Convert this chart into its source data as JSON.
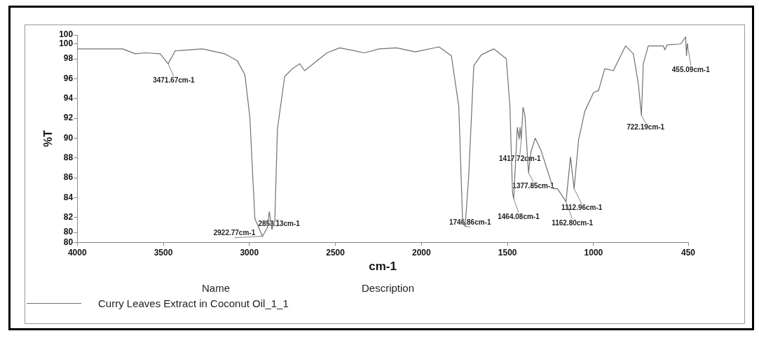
{
  "chart_data": {
    "type": "line",
    "xlabel": "cm-1",
    "ylabel": "%T",
    "xlim": [
      4000,
      450
    ],
    "xticks": [
      4000,
      3500,
      3000,
      2500,
      2000,
      1500,
      1000,
      450
    ],
    "ylim": [
      79.5,
      100.4
    ],
    "yticks": [
      {
        "value": 79.5,
        "label": "80"
      },
      {
        "value": 80.5,
        "label": "80"
      },
      82,
      84,
      86,
      88,
      90,
      92,
      94,
      96,
      98,
      {
        "value": 99.5,
        "label": "100"
      },
      {
        "value": 100.4,
        "label": "100"
      }
    ],
    "grid": false,
    "legend": "bottom",
    "marker": "none",
    "line_style": "solid",
    "series": [
      {
        "name": "Curry Leaves Extract in Coconut Oil_1_1",
        "color": "#707070",
        "x": [
          4000,
          3736,
          3663,
          3605,
          3518,
          3472,
          3431,
          3272,
          3142,
          3070,
          3026,
          2997,
          2968,
          2924,
          2895,
          2884,
          2869,
          2852,
          2837,
          2795,
          2750,
          2707,
          2679,
          2549,
          2475,
          2330,
          2246,
          2145,
          2036,
          1898,
          1826,
          1783,
          1761,
          1746,
          1725,
          1696,
          1652,
          1580,
          1507,
          1486,
          1471,
          1464,
          1443,
          1432,
          1427,
          1420,
          1410,
          1399,
          1378,
          1364,
          1339,
          1306,
          1234,
          1210,
          1160,
          1134,
          1113,
          1087,
          1051,
          1000,
          971,
          935,
          885,
          814,
          769,
          740,
          722,
          711,
          682,
          595,
          585,
          573,
          494,
          465,
          460,
          455,
          450
        ],
        "values": [
          99.0,
          99.0,
          98.5,
          98.6,
          98.5,
          97.5,
          98.8,
          99.0,
          98.5,
          97.8,
          96.4,
          92.1,
          81.9,
          80.1,
          81.0,
          82.6,
          80.8,
          81.7,
          90.9,
          96.2,
          97.0,
          97.5,
          96.8,
          98.6,
          99.1,
          98.6,
          99.0,
          99.1,
          98.7,
          99.2,
          98.3,
          93.2,
          81.7,
          81.1,
          86.3,
          97.3,
          98.4,
          99.0,
          98.0,
          93.2,
          84.5,
          83.9,
          91.1,
          89.9,
          91.1,
          89.9,
          93.1,
          92.3,
          86.5,
          88.6,
          90.0,
          88.8,
          84.9,
          84.9,
          83.6,
          88.1,
          84.9,
          89.8,
          92.7,
          94.6,
          94.8,
          97.0,
          96.8,
          99.3,
          98.5,
          95.5,
          92.3,
          97.5,
          99.3,
          99.3,
          98.9,
          99.4,
          99.5,
          100.2,
          98.3,
          99.5,
          99.4
        ]
      }
    ],
    "annotations": [
      {
        "text": "3471.67cm-1",
        "x": 3472,
        "y": 97.5
      },
      {
        "text": "2853.13cm-1",
        "x": 2852,
        "y": 81.7
      },
      {
        "text": "2922.77cm-1",
        "x": 2924,
        "y": 80.1
      },
      {
        "text": "1746.86cm-1",
        "x": 1746,
        "y": 81.1
      },
      {
        "text": "1464.08cm-1",
        "x": 1464,
        "y": 83.9
      },
      {
        "text": "1417.72cm-1",
        "x": 1420,
        "y": 89.9
      },
      {
        "text": "1377.85cm-1",
        "x": 1378,
        "y": 86.5
      },
      {
        "text": "1162.80cm-1",
        "x": 1160,
        "y": 83.6
      },
      {
        "text": "1112.96cm-1",
        "x": 1113,
        "y": 84.9
      },
      {
        "text": "722.19cm-1",
        "x": 722,
        "y": 92.3
      },
      {
        "text": "455.09cm-1",
        "x": 455,
        "y": 99.5
      },
      "Name",
      "Description"
    ]
  }
}
